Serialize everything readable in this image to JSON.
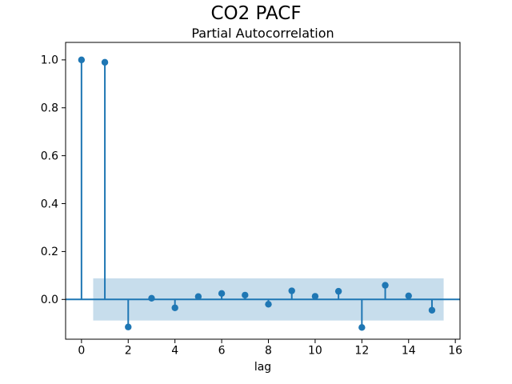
{
  "chart_data": {
    "type": "stem",
    "title": "CO2 PACF",
    "subtitle": "Partial Autocorrelation",
    "xlabel": "lag",
    "ylabel": "",
    "x": [
      0,
      1,
      2,
      3,
      4,
      5,
      6,
      7,
      8,
      9,
      10,
      11,
      12,
      13,
      14,
      15
    ],
    "values": [
      1.0,
      0.99,
      -0.115,
      0.005,
      -0.035,
      0.012,
      0.025,
      0.018,
      -0.02,
      0.036,
      0.013,
      0.034,
      -0.117,
      0.059,
      0.015,
      -0.045
    ],
    "xlim": [
      -0.68,
      16.2
    ],
    "ylim": [
      -0.166,
      1.073
    ],
    "xticks": [
      0,
      2,
      4,
      6,
      8,
      10,
      12,
      14,
      16
    ],
    "xtick_labels": [
      "0",
      "2",
      "4",
      "6",
      "8",
      "10",
      "12",
      "14",
      "16"
    ],
    "yticks": [
      0.0,
      0.2,
      0.4,
      0.6,
      0.8,
      1.0
    ],
    "ytick_labels": [
      "0.0",
      "0.2",
      "0.4",
      "0.6",
      "0.8",
      "1.0"
    ],
    "confidence_band": {
      "x_start": 0.5,
      "x_end": 15.5,
      "low": -0.088,
      "high": 0.088
    },
    "zero_line": 0.0,
    "grid": false,
    "legend": "none",
    "colors": {
      "stem": "#1f77b4",
      "marker": "#1f77b4",
      "band": "#c7ddec",
      "spine": "#000000",
      "text": "#000000",
      "background": "#ffffff"
    }
  }
}
